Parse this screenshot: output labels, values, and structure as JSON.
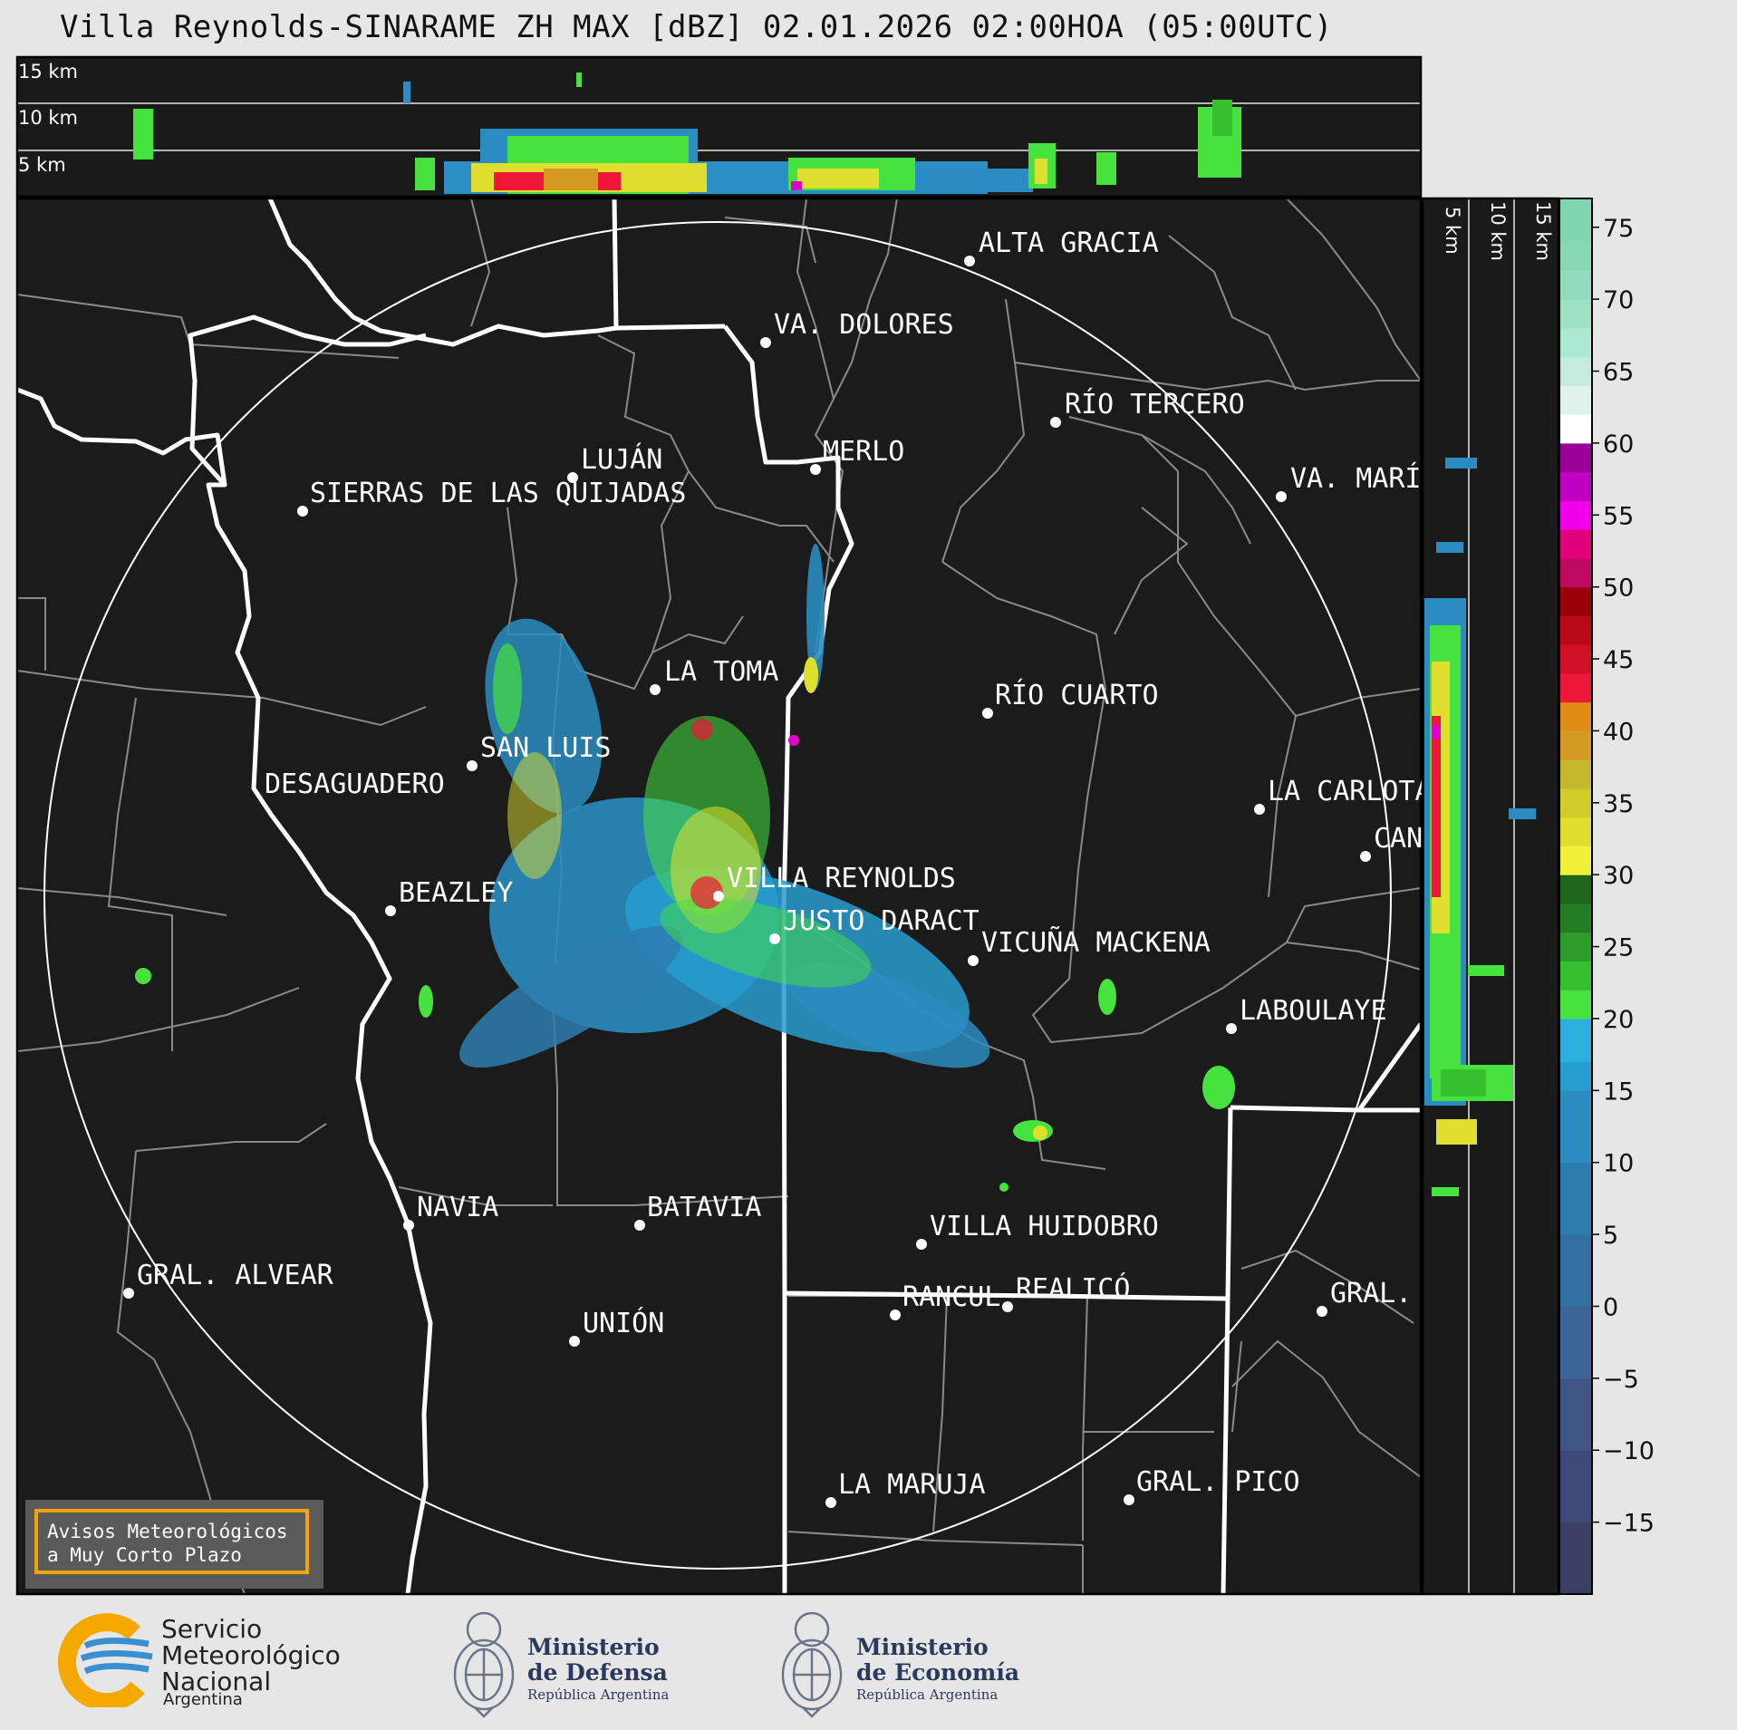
{
  "title": "Villa Reynolds-SINARAME ZH MAX [dBZ] 02.01.2026 02:00HOA (05:00UTC)",
  "top_panel": {
    "altitude_labels": [
      "15 km",
      "10 km",
      "5 km"
    ]
  },
  "side_panel": {
    "altitude_labels": [
      "5 km",
      "10 km",
      "15 km"
    ]
  },
  "colorbar": {
    "unit": "dBZ",
    "ticks": [
      "75",
      "70",
      "65",
      "60",
      "55",
      "50",
      "45",
      "40",
      "35",
      "30",
      "25",
      "20",
      "15",
      "10",
      "5",
      "0",
      "−5",
      "−10",
      "−15"
    ],
    "range": [
      -20,
      77
    ],
    "colors": {
      "-20": "#3b3f66",
      "-15": "#3d4a78",
      "-10": "#3f5685",
      "-5": "#3b6594",
      "0": "#336f9f",
      "5": "#2d7cb0",
      "10": "#2a8cc0",
      "15": "#279ccf",
      "17": "#2bb0de",
      "20": "#46e23e",
      "22": "#36c030",
      "24": "#2c9c2a",
      "26": "#237d22",
      "28": "#1d661c",
      "30": "#f1f13a",
      "32": "#e0df30",
      "34": "#cfcc2c",
      "36": "#c5b82c",
      "38": "#d49a24",
      "40": "#e08d16",
      "42": "#ee1738",
      "44": "#d11028",
      "46": "#b80a17",
      "48": "#9a0008",
      "50": "#c00a62",
      "52": "#e0007c",
      "54": "#f000e8",
      "56": "#c000c0",
      "58": "#9a0098",
      "60": "#ffffff",
      "62": "#dff3ea",
      "64": "#c3ecdc",
      "66": "#ade8d0",
      "68": "#9ee2c6",
      "70": "#90dcbc",
      "72": "#86d8b6",
      "74": "#80d6b2"
    }
  },
  "map": {
    "radar_site": "VILLA REYNOLDS",
    "places": [
      {
        "name": "ALTA GRACIA"
      },
      {
        "name": "VA. DOLORES"
      },
      {
        "name": "RÍO TERCERO"
      },
      {
        "name": "MERLO"
      },
      {
        "name": "LUJÁN"
      },
      {
        "name": "VA. MARÍ"
      },
      {
        "name": "SIERRAS DE LAS QUIJADAS"
      },
      {
        "name": "LA TOMA"
      },
      {
        "name": "RÍO CUARTO"
      },
      {
        "name": "SAN LUIS"
      },
      {
        "name": "DESAGUADERO"
      },
      {
        "name": "LA CARLOTA"
      },
      {
        "name": "CAN"
      },
      {
        "name": "VILLA REYNOLDS"
      },
      {
        "name": "BEAZLEY"
      },
      {
        "name": "JUSTO DARACT"
      },
      {
        "name": "VICUÑA MACKENA"
      },
      {
        "name": "LABOULAYE"
      },
      {
        "name": "NAVIA"
      },
      {
        "name": "BATAVIA"
      },
      {
        "name": "VILLA HUIDOBRO"
      },
      {
        "name": "GRAL. ALVEAR"
      },
      {
        "name": "RANCUL"
      },
      {
        "name": "REALICÓ"
      },
      {
        "name": "GRAL."
      },
      {
        "name": "UNIÓN"
      },
      {
        "name": "LA MARUJA"
      },
      {
        "name": "GRAL. PICO"
      }
    ]
  },
  "warning_box": {
    "line1": "Avisos Meteorológicos",
    "line2": "a Muy Corto Plazo"
  },
  "logos": {
    "smn": {
      "line1": "Servicio",
      "line2": "Meteorológico",
      "line3": "Nacional",
      "country": "Argentina"
    },
    "defensa": {
      "line1": "Ministerio",
      "line2": "de Defensa",
      "sub": "República Argentina"
    },
    "economia": {
      "line1": "Ministerio",
      "line2": "de Economía",
      "sub": "República Argentina"
    }
  }
}
